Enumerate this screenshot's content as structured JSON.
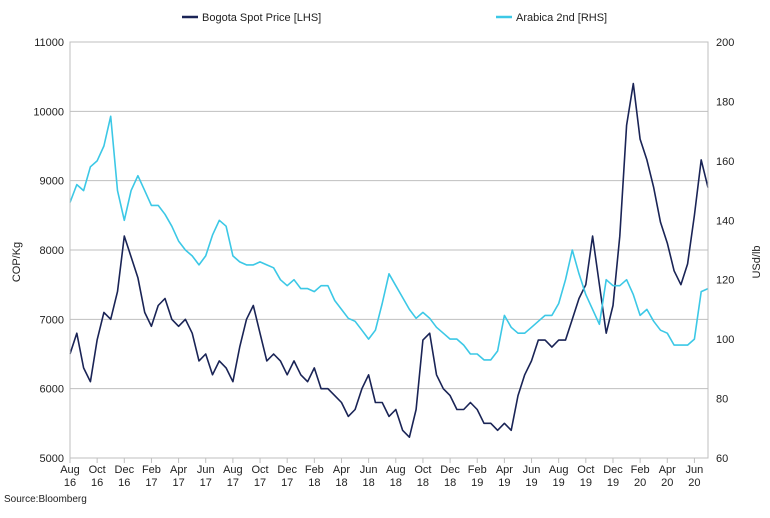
{
  "chart_data": {
    "type": "line",
    "x_categories": [
      "Aug\n16",
      "Oct\n16",
      "Dec\n16",
      "Feb\n17",
      "Apr\n17",
      "Jun\n17",
      "Aug\n17",
      "Oct\n17",
      "Dec\n17",
      "Feb\n18",
      "Apr\n18",
      "Jun\n18",
      "Aug\n18",
      "Oct\n18",
      "Dec\n18",
      "Feb\n19",
      "Apr\n19",
      "Jun\n19",
      "Aug\n19",
      "Oct\n19",
      "Dec\n19",
      "Feb\n20",
      "Apr\n20",
      "Jun\n20"
    ],
    "y_left": {
      "label": "COP/Kg",
      "min": 5000,
      "max": 11000,
      "ticks": [
        5000,
        6000,
        7000,
        8000,
        9000,
        10000,
        11000
      ]
    },
    "y_right": {
      "label": "USd/lb",
      "min": 60,
      "max": 200,
      "ticks": [
        60,
        80,
        100,
        120,
        140,
        160,
        180,
        200
      ]
    },
    "grid": true,
    "legend_position": "top",
    "source": "Source:Bloomberg",
    "series": [
      {
        "name": "Bogota Spot Price [LHS]",
        "axis": "left",
        "color": "#1a2456",
        "x_start": "2016-08",
        "x_step_months": 0.5,
        "values": [
          6500,
          6800,
          6300,
          6100,
          6700,
          7100,
          7000,
          7400,
          8200,
          7900,
          7600,
          7100,
          6900,
          7200,
          7300,
          7000,
          6900,
          7000,
          6800,
          6400,
          6500,
          6200,
          6400,
          6300,
          6100,
          6600,
          7000,
          7200,
          6800,
          6400,
          6500,
          6400,
          6200,
          6400,
          6200,
          6100,
          6300,
          6000,
          6000,
          5900,
          5800,
          5600,
          5700,
          6000,
          6200,
          5800,
          5800,
          5600,
          5700,
          5400,
          5300,
          5700,
          6700,
          6800,
          6200,
          6000,
          5900,
          5700,
          5700,
          5800,
          5700,
          5500,
          5500,
          5400,
          5500,
          5400,
          5900,
          6200,
          6400,
          6700,
          6700,
          6600,
          6700,
          6700,
          7000,
          7300,
          7500,
          8200,
          7500,
          6800,
          7200,
          8200,
          9800,
          10400,
          9600,
          9300,
          8900,
          8400,
          8100,
          7700,
          7500,
          7800,
          8500,
          9300,
          8900
        ]
      },
      {
        "name": "Arabica 2nd [RHS]",
        "axis": "right",
        "color": "#3cc8e6",
        "x_start": "2016-08",
        "x_step_months": 0.5,
        "values": [
          146,
          152,
          150,
          158,
          160,
          165,
          175,
          150,
          140,
          150,
          155,
          150,
          145,
          145,
          142,
          138,
          133,
          130,
          128,
          125,
          128,
          135,
          140,
          138,
          128,
          126,
          125,
          125,
          126,
          125,
          124,
          120,
          118,
          120,
          117,
          117,
          116,
          118,
          118,
          113,
          110,
          107,
          106,
          103,
          100,
          103,
          112,
          122,
          118,
          114,
          110,
          107,
          109,
          107,
          104,
          102,
          100,
          100,
          98,
          95,
          95,
          93,
          93,
          96,
          108,
          104,
          102,
          102,
          104,
          106,
          108,
          108,
          112,
          120,
          130,
          122,
          115,
          110,
          105,
          120,
          118,
          118,
          120,
          115,
          108,
          110,
          106,
          103,
          102,
          98,
          98,
          98,
          100,
          116,
          117
        ]
      }
    ]
  }
}
